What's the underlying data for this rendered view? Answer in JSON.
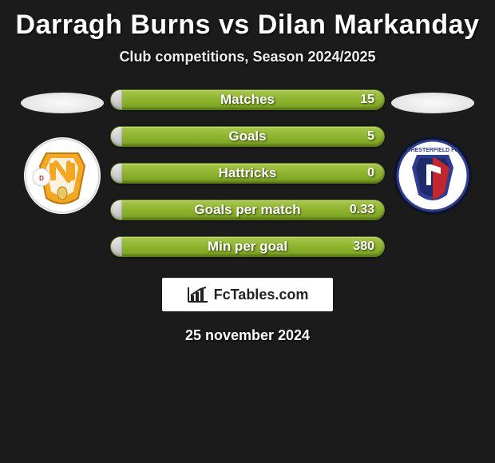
{
  "title": "Darragh Burns vs Dilan Markanday",
  "subtitle": "Club competitions, Season 2024/2025",
  "date": "25 november 2024",
  "brand": "FcTables.com",
  "colors": {
    "background": "#1b1b1b",
    "bar_fill_right": "#8eb42f",
    "bar_fill_left": "#d6d6d6",
    "text": "#ffffff"
  },
  "left_team": {
    "name": "MK Dons",
    "badge_colors": {
      "outer": "#ffffff",
      "shield": "#f5a623",
      "accent": "#e03c3c"
    }
  },
  "right_team": {
    "name": "Chesterfield",
    "badge_colors": {
      "outer": "#ffffff",
      "shield": "#2f3d8f",
      "accent": "#c1272d"
    }
  },
  "bars": [
    {
      "label": "Matches",
      "left": "",
      "right": "15",
      "left_fill_pct": 4
    },
    {
      "label": "Goals",
      "left": "",
      "right": "5",
      "left_fill_pct": 4
    },
    {
      "label": "Hattricks",
      "left": "",
      "right": "0",
      "left_fill_pct": 4
    },
    {
      "label": "Goals per match",
      "left": "",
      "right": "0.33",
      "left_fill_pct": 4
    },
    {
      "label": "Min per goal",
      "left": "",
      "right": "380",
      "left_fill_pct": 4
    }
  ],
  "fonts": {
    "title_size": 34,
    "subtitle_size": 18,
    "bar_label_size": 17,
    "bar_value_size": 16,
    "date_size": 18,
    "brand_size": 18
  }
}
